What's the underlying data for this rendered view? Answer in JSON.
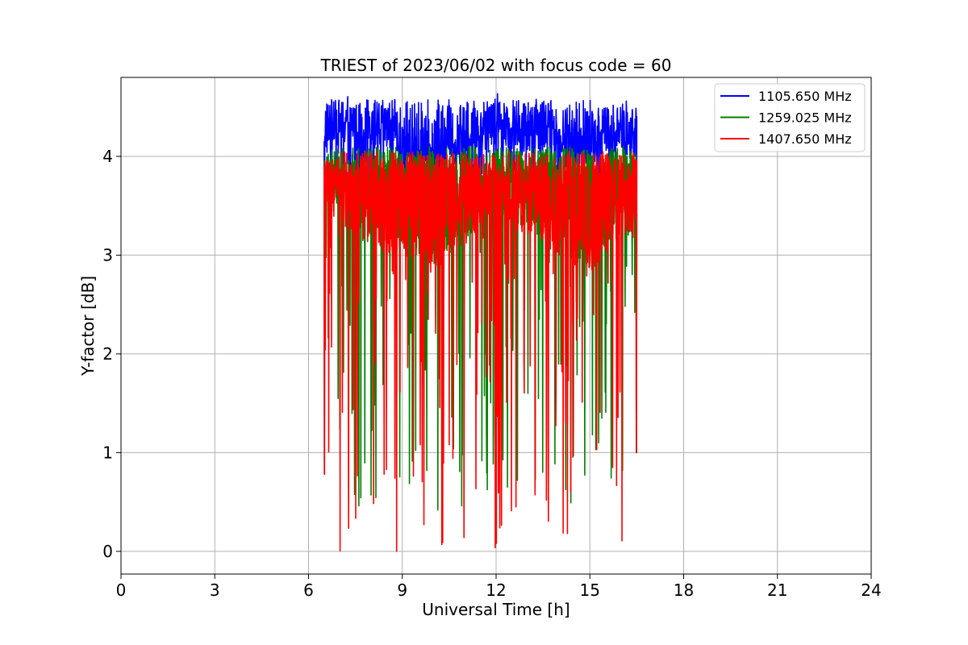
{
  "chart_data": {
    "type": "line",
    "title": "TRIEST of 2023/06/02 with focus code = 60",
    "xlabel": "Universal Time [h]",
    "ylabel": "Y-factor [dB]",
    "xlim": [
      0,
      24
    ],
    "ylim": [
      -0.23,
      4.8
    ],
    "xticks": [
      0,
      3,
      6,
      9,
      12,
      15,
      18,
      21,
      24
    ],
    "yticks": [
      0,
      1,
      2,
      3,
      4
    ],
    "grid": true,
    "legend_position": "top-right",
    "data_x_range": [
      6.5,
      16.5
    ],
    "series": [
      {
        "name": "1105.650 MHz",
        "color": "#0000ff",
        "keypoints": [
          [
            6.5,
            4.3
          ],
          [
            6.8,
            4.35
          ],
          [
            7.2,
            4.4
          ],
          [
            7.6,
            4.3
          ],
          [
            8.0,
            4.35
          ],
          [
            8.5,
            4.3
          ],
          [
            9.0,
            4.1
          ],
          [
            9.5,
            3.8
          ],
          [
            10.0,
            3.9
          ],
          [
            10.5,
            4.1
          ],
          [
            11.0,
            4.2
          ],
          [
            11.5,
            4.35
          ],
          [
            12.0,
            4.45
          ],
          [
            12.5,
            4.3
          ],
          [
            13.0,
            4.25
          ],
          [
            13.5,
            4.35
          ],
          [
            14.0,
            4.15
          ],
          [
            14.5,
            4.0
          ],
          [
            15.0,
            4.1
          ],
          [
            15.5,
            4.3
          ],
          [
            16.0,
            4.25
          ],
          [
            16.5,
            4.2
          ]
        ],
        "high_range": [
          4.0,
          4.58
        ],
        "low_range": [
          3.6,
          3.95
        ]
      },
      {
        "name": "1259.025 MHz",
        "color": "#008000",
        "keypoints": [
          [
            6.5,
            3.8
          ],
          [
            7.0,
            3.6
          ],
          [
            7.5,
            3.5
          ],
          [
            8.0,
            3.4
          ],
          [
            8.5,
            3.3
          ],
          [
            9.0,
            3.3
          ],
          [
            9.5,
            3.2
          ],
          [
            10.0,
            3.1
          ],
          [
            10.5,
            3.3
          ],
          [
            11.0,
            3.4
          ],
          [
            11.5,
            3.6
          ],
          [
            12.0,
            3.7
          ],
          [
            12.5,
            3.6
          ],
          [
            13.0,
            3.5
          ],
          [
            13.5,
            3.4
          ],
          [
            14.0,
            3.3
          ],
          [
            14.5,
            3.2
          ],
          [
            15.0,
            3.1
          ],
          [
            15.5,
            3.3
          ],
          [
            16.0,
            3.4
          ],
          [
            16.5,
            3.5
          ]
        ],
        "high_range": [
          3.75,
          4.1
        ],
        "low_range": [
          0.42,
          3.3
        ],
        "minimum": 0.42
      },
      {
        "name": "1407.650 MHz",
        "color": "#ff0000",
        "keypoints": [
          [
            6.5,
            3.75
          ],
          [
            7.0,
            3.55
          ],
          [
            7.5,
            3.45
          ],
          [
            8.0,
            3.35
          ],
          [
            8.5,
            3.25
          ],
          [
            9.0,
            3.25
          ],
          [
            9.5,
            3.15
          ],
          [
            10.0,
            3.05
          ],
          [
            10.5,
            3.25
          ],
          [
            11.0,
            3.35
          ],
          [
            11.5,
            3.55
          ],
          [
            12.0,
            3.65
          ],
          [
            12.5,
            3.55
          ],
          [
            13.0,
            3.45
          ],
          [
            13.5,
            3.35
          ],
          [
            14.0,
            3.25
          ],
          [
            14.5,
            3.15
          ],
          [
            15.0,
            3.05
          ],
          [
            15.5,
            3.25
          ],
          [
            16.0,
            3.35
          ],
          [
            16.5,
            3.45
          ]
        ],
        "high_range": [
          3.7,
          4.05
        ],
        "low_range": [
          0.0,
          3.3
        ],
        "minimum": 0.0
      }
    ]
  }
}
